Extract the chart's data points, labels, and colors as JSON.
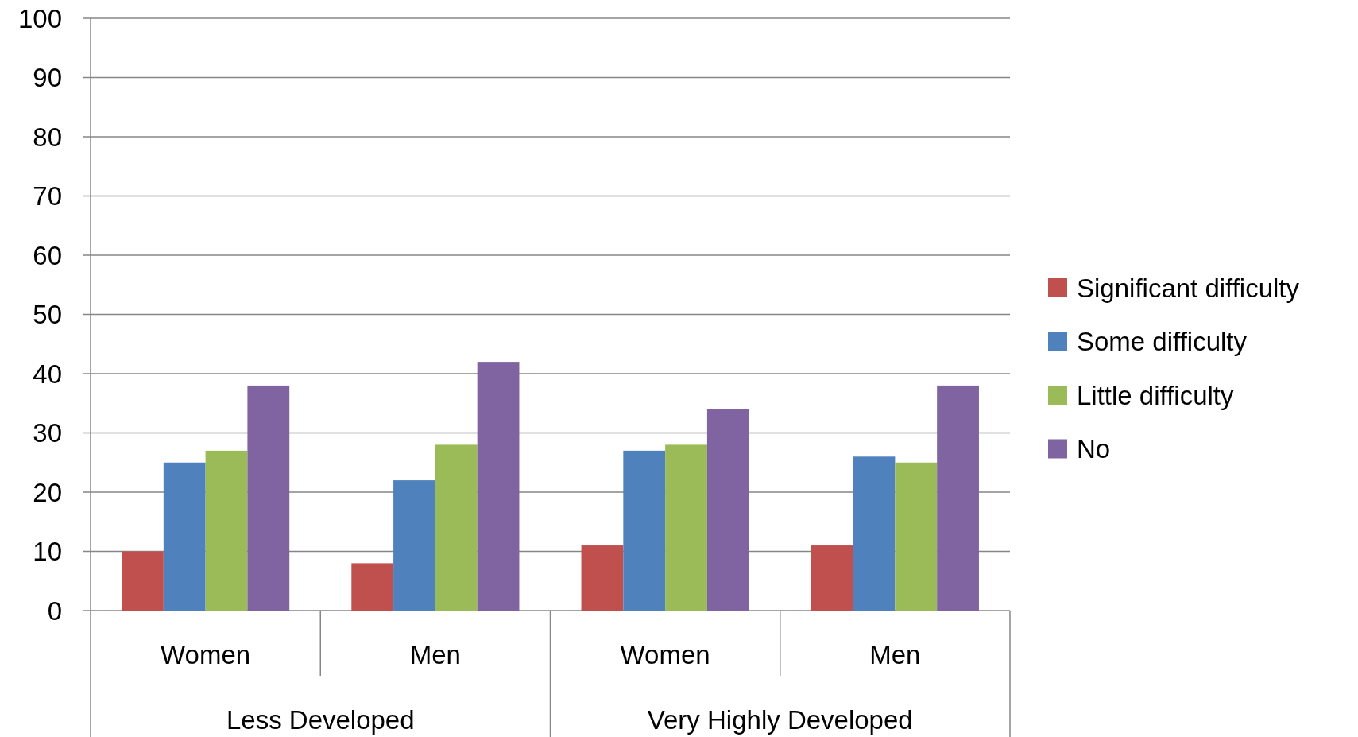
{
  "chart_data": {
    "type": "bar",
    "categories": [
      "Women",
      "Men",
      "Women",
      "Men"
    ],
    "series": [
      {
        "name": "Significant difficulty",
        "color": "#c0504d",
        "values": [
          10,
          8,
          11,
          11
        ]
      },
      {
        "name": "Some difficulty",
        "color": "#4f81bd",
        "values": [
          25,
          22,
          27,
          26
        ]
      },
      {
        "name": "Little difficulty",
        "color": "#9bbb59",
        "values": [
          27,
          28,
          28,
          25
        ]
      },
      {
        "name": "No",
        "color": "#8064a2",
        "values": [
          38,
          42,
          34,
          38
        ]
      }
    ],
    "annotations": [
      "Less Developed",
      "Very Highly Developed"
    ],
    "ylim": [
      0,
      100
    ],
    "yticks": [
      0,
      10,
      20,
      30,
      40,
      50,
      60,
      70,
      80,
      90,
      100
    ],
    "grid": "y",
    "legend": "right"
  }
}
